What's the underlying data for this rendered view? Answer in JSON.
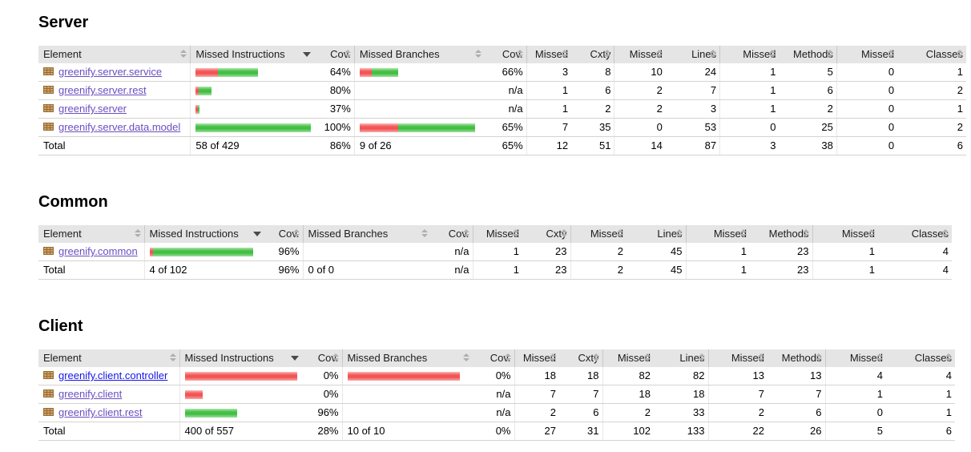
{
  "colors": {
    "bar_red": "#f25050",
    "bar_green": "#3ebe3e",
    "header_bg": "#e5e5e5",
    "row_border": "#d6d3ce",
    "link": "#1515e8",
    "link_visited": "#6a4fc1",
    "sort_neutral": "#aeaeae",
    "sort_active": "#4a4a4a"
  },
  "columns": {
    "element": "Element",
    "missed_instructions": "Missed Instructions",
    "cov": "Cov.",
    "missed_branches": "Missed Branches",
    "missed": "Missed",
    "cxty": "Cxty",
    "lines": "Lines",
    "methods": "Methods",
    "classes": "Classes"
  },
  "total_label": "Total",
  "sections": [
    {
      "title": "Server",
      "rows": [
        {
          "name": "greenify.server.service",
          "instr_bar": {
            "red": 28,
            "green": 50
          },
          "instr_cov": "64%",
          "branch_bar": {
            "red": 15,
            "green": 33
          },
          "branch_cov": "66%",
          "missed_cxty": "3",
          "cxty": "8",
          "missed_lines": "10",
          "lines": "24",
          "missed_methods": "1",
          "methods": "5",
          "missed_classes": "0",
          "classes": "1"
        },
        {
          "name": "greenify.server.rest",
          "instr_bar": {
            "red": 4,
            "green": 16
          },
          "instr_cov": "80%",
          "branch_bar": null,
          "branch_cov": "n/a",
          "missed_cxty": "1",
          "cxty": "6",
          "missed_lines": "2",
          "lines": "7",
          "missed_methods": "1",
          "methods": "6",
          "missed_classes": "0",
          "classes": "2"
        },
        {
          "name": "greenify.server",
          "instr_bar": {
            "red": 3,
            "green": 2
          },
          "instr_cov": "37%",
          "branch_bar": null,
          "branch_cov": "n/a",
          "missed_cxty": "1",
          "cxty": "2",
          "missed_lines": "2",
          "lines": "3",
          "missed_methods": "1",
          "methods": "2",
          "missed_classes": "0",
          "classes": "1"
        },
        {
          "name": "greenify.server.data.model",
          "instr_bar": {
            "red": 0,
            "green": 144
          },
          "instr_cov": "100%",
          "branch_bar": {
            "red": 48,
            "green": 96
          },
          "branch_cov": "65%",
          "missed_cxty": "7",
          "cxty": "35",
          "missed_lines": "0",
          "lines": "53",
          "missed_methods": "0",
          "methods": "25",
          "missed_classes": "0",
          "classes": "2"
        }
      ],
      "total": {
        "instr": "58 of 429",
        "instr_cov": "86%",
        "branch": "9 of 26",
        "branch_cov": "65%",
        "missed_cxty": "12",
        "cxty": "51",
        "missed_lines": "14",
        "lines": "87",
        "missed_methods": "3",
        "methods": "38",
        "missed_classes": "0",
        "classes": "6"
      }
    },
    {
      "title": "Common",
      "rows": [
        {
          "name": "greenify.common",
          "instr_bar": {
            "red": 4,
            "green": 125
          },
          "instr_cov": "96%",
          "branch_bar": null,
          "branch_cov": "n/a",
          "missed_cxty": "1",
          "cxty": "23",
          "missed_lines": "2",
          "lines": "45",
          "missed_methods": "1",
          "methods": "23",
          "missed_classes": "1",
          "classes": "4"
        }
      ],
      "total": {
        "instr": "4 of 102",
        "instr_cov": "96%",
        "branch": "0 of 0",
        "branch_cov": "n/a",
        "missed_cxty": "1",
        "cxty": "23",
        "missed_lines": "2",
        "lines": "45",
        "missed_methods": "1",
        "methods": "23",
        "missed_classes": "1",
        "classes": "4"
      }
    },
    {
      "title": "Client",
      "rows": [
        {
          "name": "greenify.client.controller",
          "instr_bar": {
            "red": 140,
            "green": 0
          },
          "instr_cov": "0%",
          "branch_bar": {
            "red": 140,
            "green": 0
          },
          "branch_cov": "0%",
          "missed_cxty": "18",
          "cxty": "18",
          "missed_lines": "82",
          "lines": "82",
          "missed_methods": "13",
          "methods": "13",
          "missed_classes": "4",
          "classes": "4"
        },
        {
          "name": "greenify.client",
          "instr_bar": {
            "red": 22,
            "green": 0
          },
          "instr_cov": "0%",
          "branch_bar": null,
          "branch_cov": "n/a",
          "missed_cxty": "7",
          "cxty": "7",
          "missed_lines": "18",
          "lines": "18",
          "missed_methods": "7",
          "methods": "7",
          "missed_classes": "1",
          "classes": "1"
        },
        {
          "name": "greenify.client.rest",
          "instr_bar": {
            "red": 0,
            "green": 65
          },
          "instr_cov": "96%",
          "branch_bar": null,
          "branch_cov": "n/a",
          "missed_cxty": "2",
          "cxty": "6",
          "missed_lines": "2",
          "lines": "33",
          "missed_methods": "2",
          "methods": "6",
          "missed_classes": "0",
          "classes": "1"
        }
      ],
      "total": {
        "instr": "400 of 557",
        "instr_cov": "28%",
        "branch": "10 of 10",
        "branch_cov": "0%",
        "missed_cxty": "27",
        "cxty": "31",
        "missed_lines": "102",
        "lines": "133",
        "missed_methods": "22",
        "methods": "26",
        "missed_classes": "5",
        "classes": "6"
      }
    }
  ]
}
